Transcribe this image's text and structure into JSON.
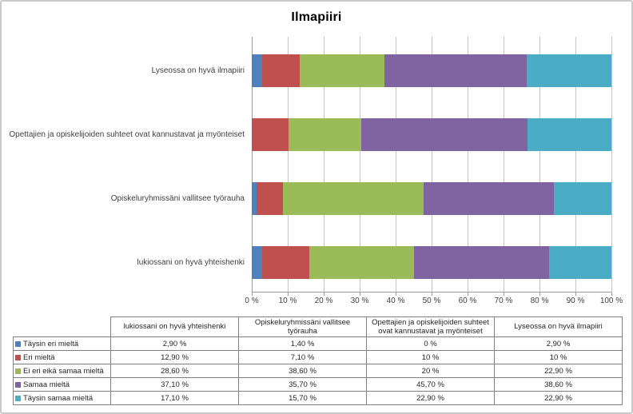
{
  "chart_data": {
    "type": "bar",
    "subtype": "stacked-100-horizontal",
    "title": "Ilmapiiri",
    "categories": [
      "Lyseossa on hyvä ilmapiiri",
      "Opettajien ja opiskelijoiden suhteet ovat kannustavat ja myönteiset",
      "Opiskeluryhmissäni vallitsee työrauha",
      "lukiossani on hyvä yhteishenki"
    ],
    "series": [
      {
        "name": "Täysin eri mieltä",
        "color": "#4F81BD",
        "values": [
          2.9,
          0,
          1.4,
          2.9
        ]
      },
      {
        "name": "Eri mieltä",
        "color": "#C0504D",
        "values": [
          10,
          10,
          7.1,
          12.9
        ]
      },
      {
        "name": "Ei eri eikä samaa mieltä",
        "color": "#9BBB59",
        "values": [
          22.9,
          20,
          38.6,
          28.6
        ]
      },
      {
        "name": "Samaa mieltä",
        "color": "#8064A2",
        "values": [
          38.6,
          45.7,
          35.7,
          37.1
        ]
      },
      {
        "name": "Täysin samaa mieltä",
        "color": "#4BACC6",
        "values": [
          22.9,
          22.9,
          15.7,
          17.1
        ]
      }
    ],
    "x_ticks": [
      "0 %",
      "10 %",
      "20 %",
      "30 %",
      "40 %",
      "50 %",
      "60 %",
      "70 %",
      "80 %",
      "90 %",
      "100 %"
    ],
    "xlim": [
      0,
      100
    ],
    "gridlines": true,
    "legend_position": "data-table"
  },
  "table": {
    "column_headers": [
      "lukiossani on hyvä yhteishenki",
      "Opiskeluryhmissäni vallitsee\ntyörauha",
      "Opettajien ja opiskelijoiden suhteet\novat kannustavat ja myönteiset",
      "Lyseossa on hyvä ilmapiiri"
    ],
    "rows": [
      {
        "label": "Täysin eri mieltä",
        "color": "#4F81BD",
        "values": [
          "2,90 %",
          "1,40 %",
          "0 %",
          "2,90 %"
        ]
      },
      {
        "label": "Eri mieltä",
        "color": "#C0504D",
        "values": [
          "12,90 %",
          "7,10 %",
          "10 %",
          "10 %"
        ]
      },
      {
        "label": "Ei eri eikä samaa mieltä",
        "color": "#9BBB59",
        "values": [
          "28,60 %",
          "38,60 %",
          "20 %",
          "22,90 %"
        ]
      },
      {
        "label": "Samaa mieltä",
        "color": "#8064A2",
        "values": [
          "37,10 %",
          "35,70 %",
          "45,70 %",
          "38,60 %"
        ]
      },
      {
        "label": "Täysin samaa mieltä",
        "color": "#4BACC6",
        "values": [
          "17,10 %",
          "15,70 %",
          "22,90 %",
          "22,90 %"
        ]
      }
    ]
  }
}
